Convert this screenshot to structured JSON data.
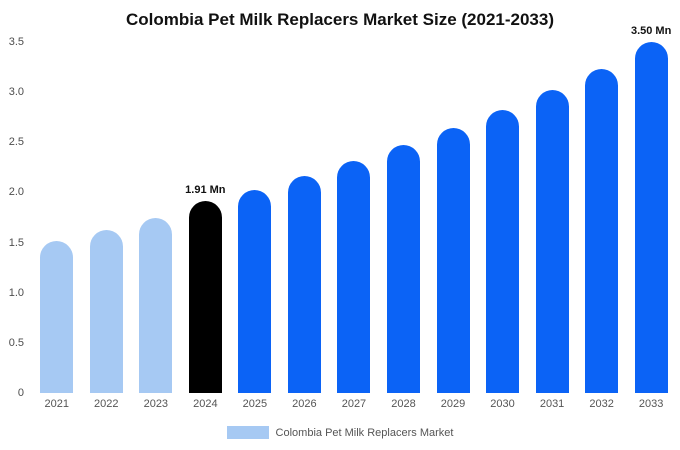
{
  "title": "Colombia Pet Milk Replacers Market Size (2021-2033)",
  "legend": {
    "label": "Colombia Pet Milk Replacers Market",
    "swatch_color": "#a6c9f3"
  },
  "colors": {
    "historical_bar": "#a6c9f3",
    "highlight_bar": "#000000",
    "forecast_bar": "#0b63f6",
    "title_text": "#111111",
    "axis_text": "#4d4d4d"
  },
  "chart_data": {
    "type": "bar",
    "title": "Colombia Pet Milk Replacers Market Size (2021-2033)",
    "xlabel": "",
    "ylabel": "",
    "ylim": [
      0,
      3.5
    ],
    "yticks": [
      0,
      0.5,
      1.0,
      1.5,
      2.0,
      2.5,
      3.0,
      3.5
    ],
    "ytick_labels": [
      "0",
      "0.5",
      "1.0",
      "1.5",
      "2.0",
      "2.5",
      "3.0",
      "3.5"
    ],
    "grid": false,
    "legend_position": "bottom",
    "categories": [
      "2021",
      "2022",
      "2023",
      "2024",
      "2025",
      "2026",
      "2027",
      "2028",
      "2029",
      "2030",
      "2031",
      "2032",
      "2033"
    ],
    "values": [
      1.52,
      1.63,
      1.75,
      1.91,
      2.02,
      2.16,
      2.31,
      2.47,
      2.64,
      2.82,
      3.02,
      3.23,
      3.5
    ],
    "bar_colors": [
      "#a6c9f3",
      "#a6c9f3",
      "#a6c9f3",
      "#000000",
      "#0b63f6",
      "#0b63f6",
      "#0b63f6",
      "#0b63f6",
      "#0b63f6",
      "#0b63f6",
      "#0b63f6",
      "#0b63f6",
      "#0b63f6"
    ],
    "annotations": [
      {
        "index": 3,
        "text": "1.91 Mn"
      },
      {
        "index": 12,
        "text": "3.50 Mn"
      }
    ],
    "series_name": "Colombia Pet Milk Replacers Market",
    "unit": "Mn"
  }
}
